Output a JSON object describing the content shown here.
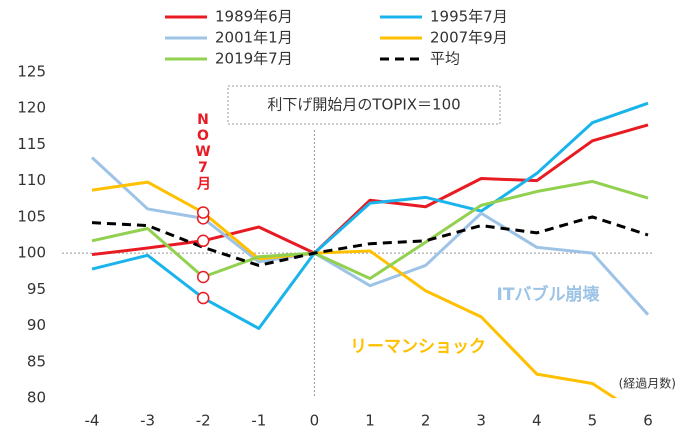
{
  "chart_data": {
    "type": "line",
    "x": [
      -4,
      -3,
      -2,
      -1,
      0,
      1,
      2,
      3,
      4,
      5,
      6
    ],
    "xlim": [
      -4,
      6
    ],
    "xticks": [
      -4,
      -3,
      -2,
      -1,
      0,
      1,
      2,
      3,
      4,
      5,
      6
    ],
    "ylim": [
      80,
      125
    ],
    "yticks": [
      80,
      85,
      90,
      95,
      100,
      105,
      110,
      115,
      120,
      125
    ],
    "xlabel": "(経過月数)",
    "reference_lines": {
      "x": 0,
      "y": 100
    },
    "highlight_index": 2,
    "series": [
      {
        "name": "1989年6月",
        "color": "#e81b23",
        "values": [
          99.8,
          100.7,
          101.7,
          103.6,
          100,
          107.3,
          106.4,
          110.3,
          110,
          115.5,
          117.7
        ]
      },
      {
        "name": "1995年7月",
        "color": "#1ab4ec",
        "values": [
          97.8,
          99.7,
          93.8,
          89.6,
          100,
          106.9,
          107.7,
          105.8,
          111,
          118,
          120.7
        ]
      },
      {
        "name": "2001年1月",
        "color": "#9dc3e6",
        "values": [
          113.2,
          106.1,
          104.8,
          98.8,
          100,
          95.5,
          98.3,
          105.5,
          100.8,
          100,
          91.5
        ]
      },
      {
        "name": "2007年9月",
        "color": "#ffc000",
        "values": [
          108.7,
          109.8,
          105.6,
          99.2,
          100,
          100.3,
          94.8,
          91.2,
          83.3,
          82,
          77
        ]
      },
      {
        "name": "2019年7月",
        "color": "#92d050",
        "values": [
          101.7,
          103.4,
          96.7,
          99.5,
          100,
          96.5,
          101.5,
          106.6,
          108.5,
          109.9,
          107.6
        ]
      },
      {
        "name": "平均",
        "color": "#000000",
        "dashed": true,
        "values": [
          104.2,
          103.8,
          100.8,
          98.3,
          100,
          101.3,
          101.7,
          103.8,
          102.8,
          105,
          102.5
        ]
      }
    ],
    "annotations": [
      {
        "text": "利下げ開始月のTOPIX＝100",
        "color": "#333333"
      },
      {
        "text": "NOW7月",
        "color": "#e81b23"
      },
      {
        "text": "ITバブル崩壊",
        "color": "#9dc3e6"
      },
      {
        "text": "リーマンショック",
        "color": "#ffc000"
      }
    ]
  }
}
